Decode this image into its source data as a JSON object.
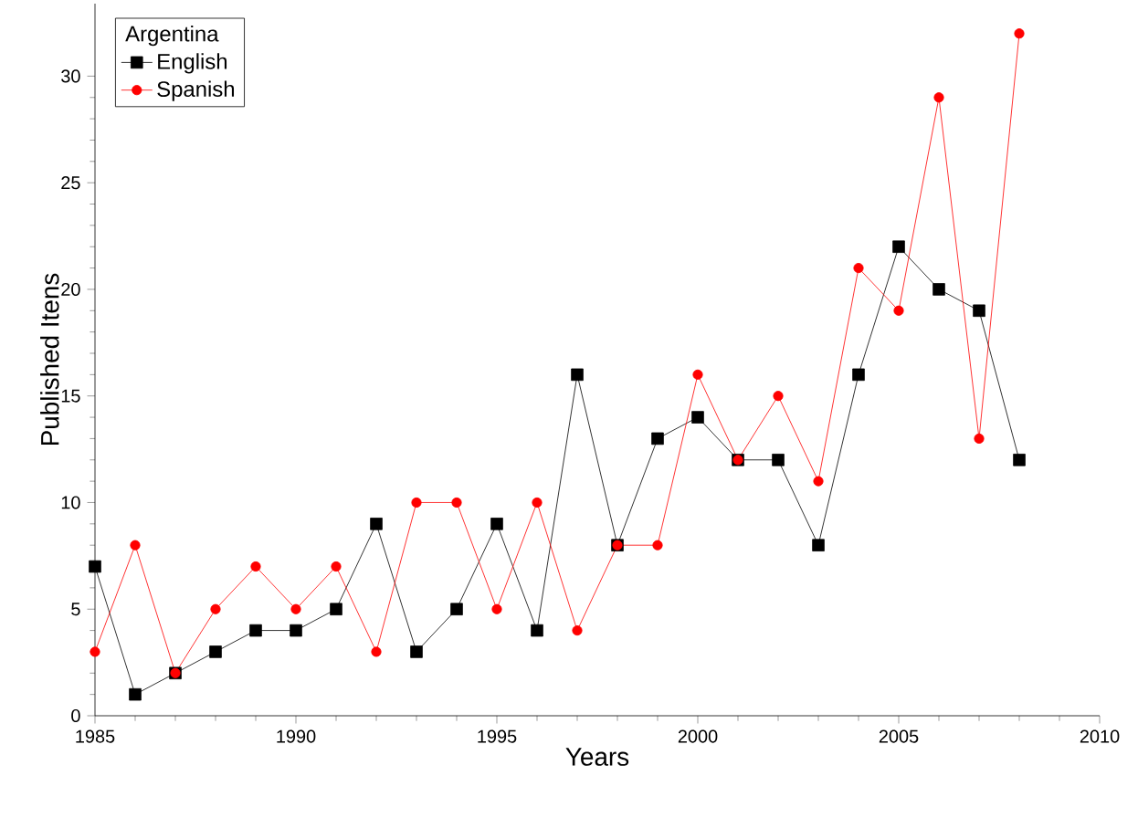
{
  "chart_data": {
    "type": "line",
    "xlabel": "Years",
    "ylabel": "Published Itens",
    "legend_title": "Argentina",
    "legend": "top left",
    "x": [
      1985,
      1986,
      1987,
      1988,
      1989,
      1990,
      1991,
      1992,
      1993,
      1994,
      1995,
      1996,
      1997,
      1998,
      1999,
      2000,
      2001,
      2002,
      2003,
      2004,
      2005,
      2006,
      2007,
      2008
    ],
    "series": [
      {
        "name": "English",
        "color": "#000000",
        "marker": "square",
        "values": [
          7,
          1,
          2,
          3,
          4,
          4,
          5,
          9,
          3,
          5,
          9,
          4,
          16,
          8,
          13,
          14,
          12,
          12,
          8,
          16,
          22,
          20,
          19,
          12
        ]
      },
      {
        "name": "Spanish",
        "color": "#ff0000",
        "marker": "circle",
        "values": [
          3,
          8,
          2,
          5,
          7,
          5,
          7,
          3,
          10,
          10,
          5,
          10,
          4,
          8,
          8,
          16,
          12,
          15,
          11,
          21,
          19,
          29,
          13,
          32
        ]
      }
    ],
    "xlim": [
      1985,
      2010
    ],
    "ylim": [
      0,
      33.4
    ],
    "xticks": [
      1985,
      1990,
      1995,
      2000,
      2005,
      2010
    ],
    "yticks": [
      0,
      5,
      10,
      15,
      20,
      25,
      30
    ],
    "line_style": "solid"
  }
}
